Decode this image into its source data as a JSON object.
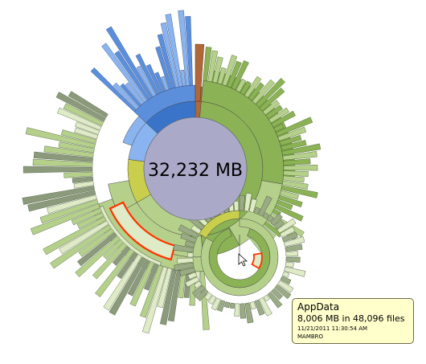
{
  "center": {
    "total_size": "32,232 MB"
  },
  "colors": {
    "center_fill": "#aaaac8",
    "green_dark": "#6f9a3e",
    "green_mid": "#8bb255",
    "green_light": "#b5d08a",
    "green_pale": "#dfeac6",
    "blue_dark": "#3a74c9",
    "blue_mid": "#5b8fdc",
    "blue_light": "#8ab4ef",
    "yellow": "#c9cf4c",
    "brown": "#b0683a",
    "highlight_outline": "#ff3300",
    "tooltip_bg": "#ffffcc"
  },
  "tooltip": {
    "name": "AppData",
    "size_line": "8,006 MB in 48,096 files",
    "timestamp": "11/21/2011 11:30:54 AM",
    "owner": "MAMBRO"
  }
}
